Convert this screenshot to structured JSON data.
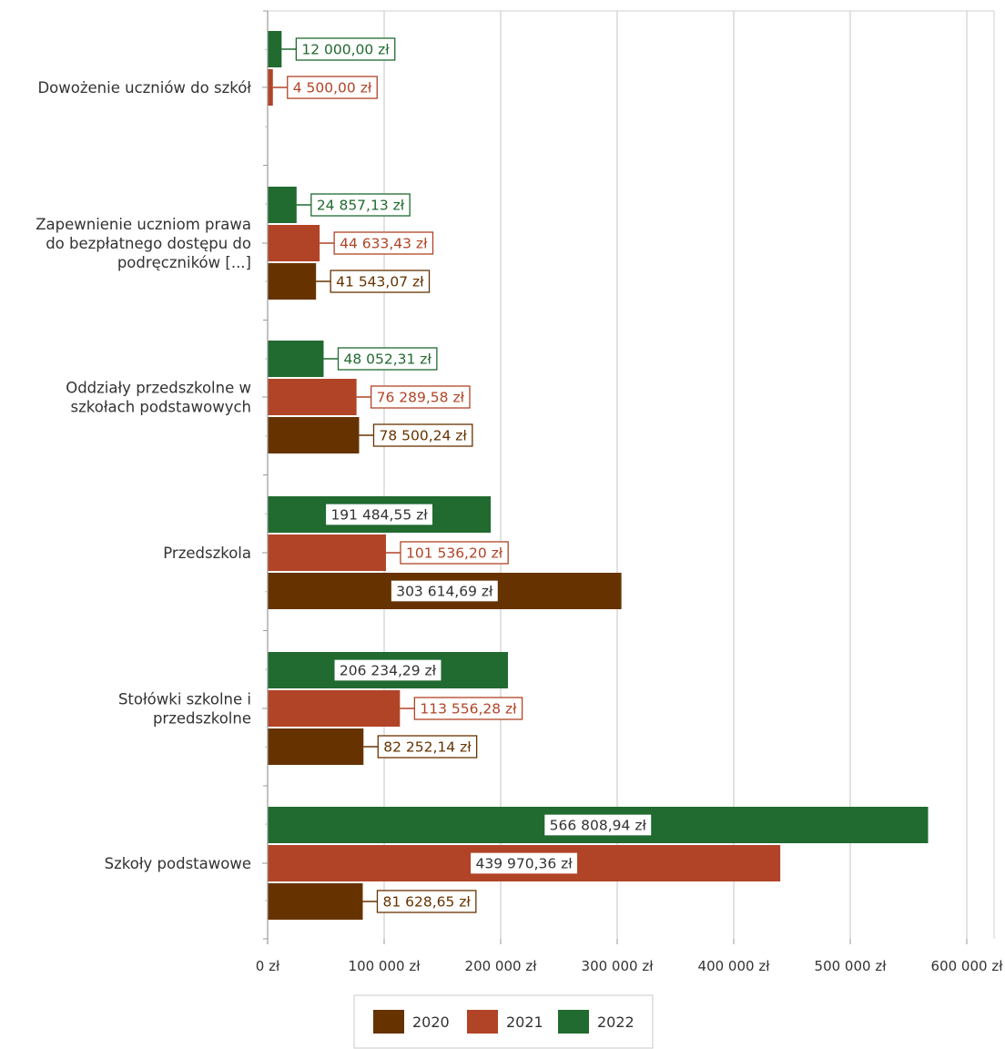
{
  "chart_data": {
    "type": "bar",
    "orientation": "horizontal",
    "categories": [
      "Dowożenie uczniów do szkół",
      "Zapewnienie uczniom prawa do bezpłatnego dostępu do podręczników [...]",
      "Oddziały przedszkolne w szkołach podstawowych",
      "Przedszkola",
      "Stołówki szkolne i przedszkolne",
      "Szkoły podstawowe"
    ],
    "series": [
      {
        "name": "2020",
        "color": "#663300",
        "values": [
          null,
          41543.07,
          78500.24,
          303614.69,
          82252.14,
          81628.65
        ],
        "labels": [
          "",
          "41 543,07 zł",
          "78 500,24 zł",
          "303 614,69 zł",
          "82 252,14 zł",
          "81 628,65 zł"
        ]
      },
      {
        "name": "2021",
        "color": "#B14427",
        "values": [
          4500.0,
          44633.43,
          76289.58,
          101536.2,
          113556.28,
          439970.36
        ],
        "labels": [
          "4 500,00 zł",
          "44 633,43 zł",
          "76 289,58 zł",
          "101 536,20 zł",
          "113 556,28 zł",
          "439 970,36 zł"
        ]
      },
      {
        "name": "2022",
        "color": "#216A30",
        "values": [
          12000.0,
          24857.13,
          48052.31,
          191484.55,
          206234.29,
          566808.94
        ],
        "labels": [
          "12 000,00 zł",
          "24 857,13 zł",
          "48 052,31 zł",
          "191 484,55 zł",
          "206 234,29 zł",
          "566 808,94 zł"
        ]
      }
    ],
    "xlim": [
      0,
      600000
    ],
    "x_ticks": [
      0,
      100000,
      200000,
      300000,
      400000,
      500000,
      600000
    ],
    "x_tick_labels": [
      "0 zł",
      "100 000 zł",
      "200 000 zł",
      "300 000 zł",
      "400 000 zł",
      "500 000 zł",
      "600 000 zł"
    ],
    "grid": true,
    "legend_position": "bottom",
    "title": "",
    "xlabel": "",
    "ylabel": ""
  },
  "legend": {
    "items": [
      {
        "name": "2020",
        "color": "#663300"
      },
      {
        "name": "2021",
        "color": "#B14427"
      },
      {
        "name": "2022",
        "color": "#216A30"
      }
    ]
  }
}
